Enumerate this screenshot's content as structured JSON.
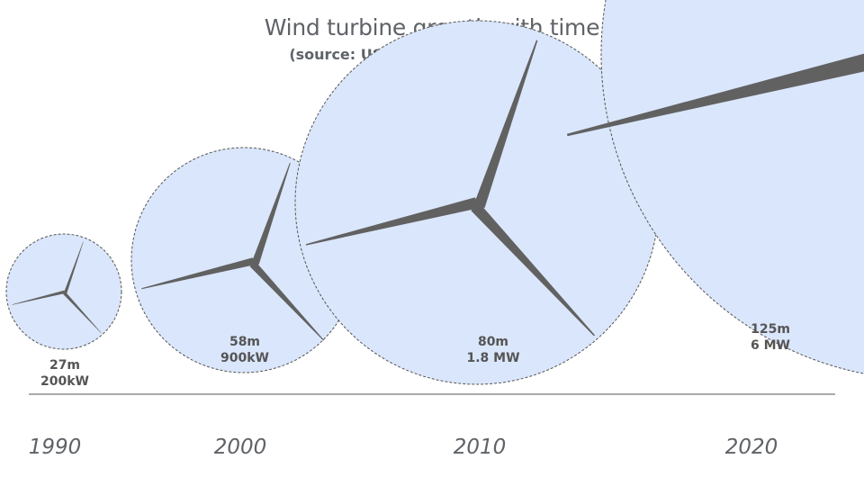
{
  "title": "Wind turbine growth with time",
  "subtitle": "(source: US Department of Energy)",
  "colors": {
    "disc_fill": "#dae6fb",
    "disc_stroke": "#555555",
    "blade": "#616161",
    "label": "#555555",
    "year": "#5f6368",
    "axis": "#555555"
  },
  "chart_data": {
    "type": "bubble",
    "x_unit": "year",
    "xlim": [
      1985,
      2025
    ],
    "categories": [
      "1990",
      "2000",
      "2010",
      "2020"
    ],
    "series": [
      {
        "x": [
          1990,
          2000,
          2010,
          2020
        ],
        "rotor_diameter_m": [
          27,
          58,
          80,
          125
        ],
        "capacity_kw": [
          200,
          900,
          1800,
          6000
        ],
        "diameter_labels": [
          "27m",
          "58m",
          "80m",
          "125m"
        ],
        "capacity_labels": [
          "200kW",
          "900kW",
          "1.8 MW",
          "6 MW"
        ]
      }
    ]
  }
}
